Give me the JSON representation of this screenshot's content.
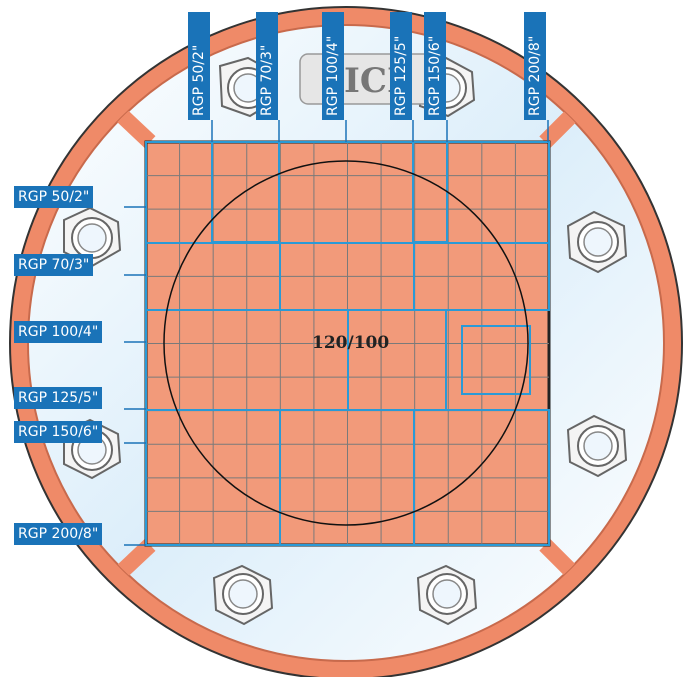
{
  "diagram": {
    "center_label": "120/100",
    "colors": {
      "panel": "#f29a7a",
      "flange": "#ef8a68",
      "glass": "#e8f2fb",
      "grid": "#7a7a7a",
      "frame": "#2a9ad6",
      "tag": "#1a73b8"
    },
    "side_tags": [
      {
        "label": "RGP 50/2\""
      },
      {
        "label": "RGP 70/3\""
      },
      {
        "label": "RGP 100/4\""
      },
      {
        "label": "RGP 125/5\""
      },
      {
        "label": "RGP 150/6\""
      },
      {
        "label": "RGP 200/8\""
      }
    ],
    "top_tags": [
      {
        "label": "RGP 50/2\""
      },
      {
        "label": "RGP 70/3\""
      },
      {
        "label": "RGP 100/4\""
      },
      {
        "label": "RGP 125/5\""
      },
      {
        "label": "RGP 150/6\""
      },
      {
        "label": "RGP 200/8\""
      }
    ],
    "logo_text": "ICI"
  }
}
